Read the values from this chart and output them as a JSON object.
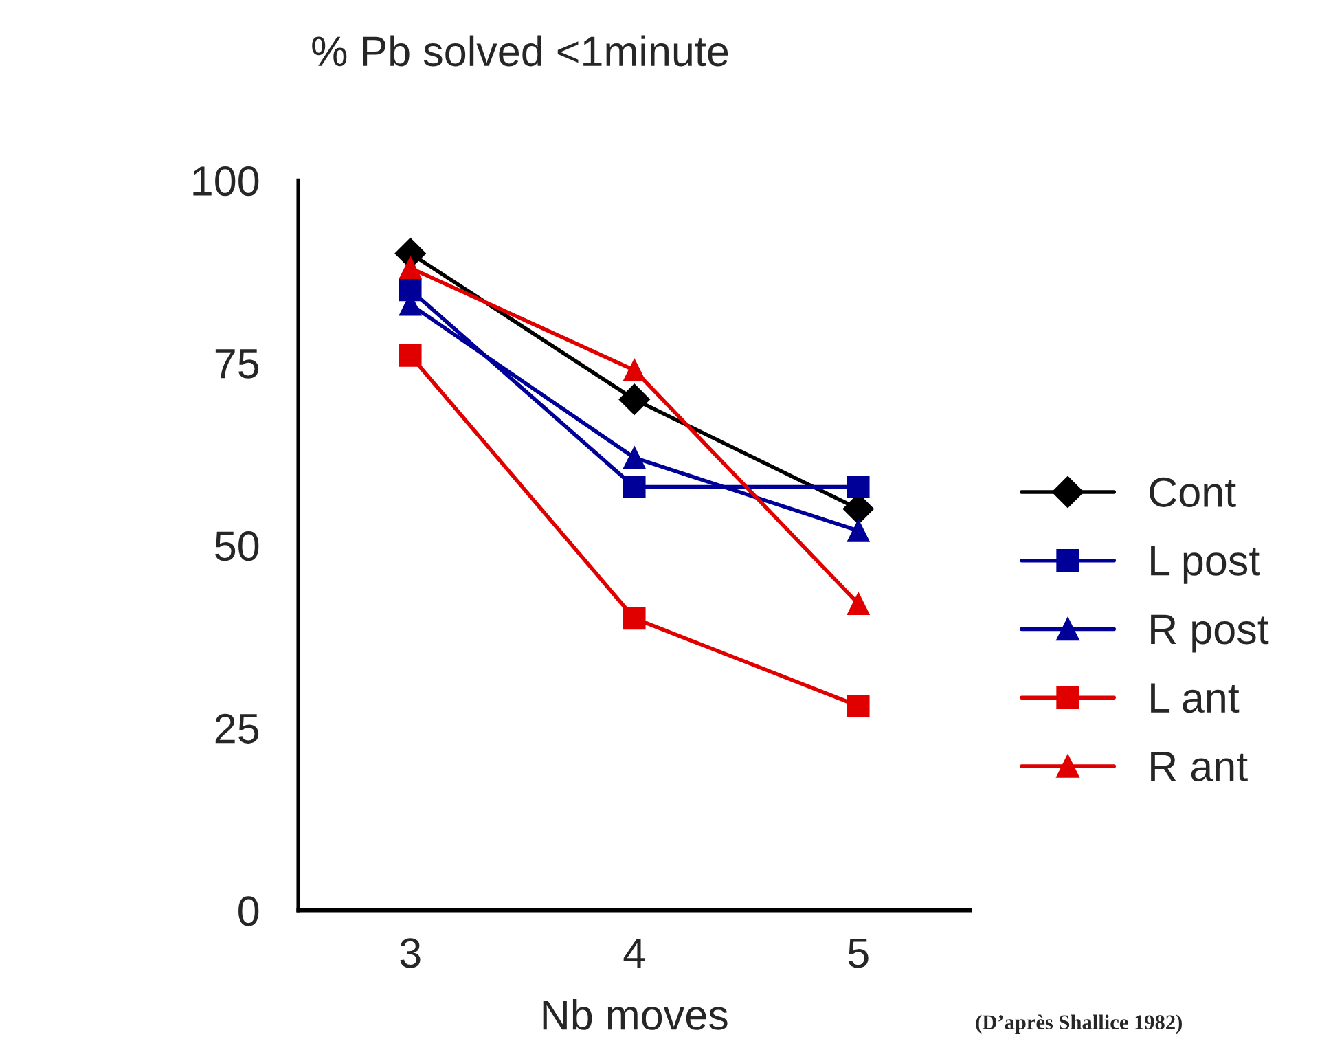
{
  "chart_data": {
    "type": "line",
    "title": "% Pb solved <1minute",
    "xlabel": "Nb moves",
    "categories": [
      "3",
      "4",
      "5"
    ],
    "series": [
      {
        "name": "Cont",
        "color": "#000000",
        "marker": "diamond",
        "values": [
          90,
          70,
          55
        ]
      },
      {
        "name": "L post",
        "color": "#000099",
        "marker": "square",
        "values": [
          85,
          58,
          58
        ]
      },
      {
        "name": "R post",
        "color": "#000099",
        "marker": "triangle",
        "values": [
          83,
          62,
          52
        ]
      },
      {
        "name": "L ant",
        "color": "#e00000",
        "marker": "square",
        "values": [
          76,
          40,
          28
        ]
      },
      {
        "name": "R ant",
        "color": "#e00000",
        "marker": "triangle",
        "values": [
          88,
          74,
          42
        ]
      }
    ],
    "ylim": [
      0,
      100
    ],
    "yticks": [
      0,
      25,
      50,
      75,
      100
    ],
    "grid": false,
    "legend": "right",
    "line_style": "solid",
    "annotations": [
      "(D’après Shallice 1982)"
    ]
  }
}
